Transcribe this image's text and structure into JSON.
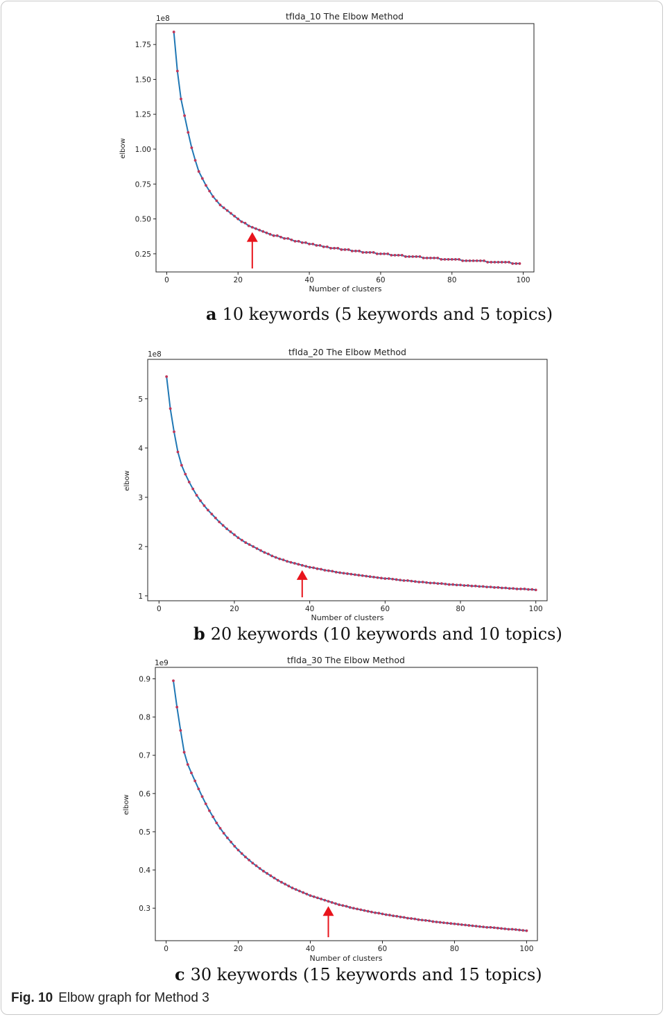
{
  "figure": {
    "number": "Fig. 10",
    "caption": "Elbow graph for Method 3"
  },
  "chart_data": [
    {
      "type": "line",
      "title": "tfIda_10 The Elbow Method",
      "xlabel": "Number of clusters",
      "ylabel": "elbow",
      "offset_label": "1e8",
      "scale": 100000000,
      "xlim": [
        -3,
        103
      ],
      "ylim": [
        0.12,
        1.9
      ],
      "xticks": [
        0,
        20,
        40,
        60,
        80,
        100
      ],
      "yticks": [
        0.25,
        0.5,
        0.75,
        1.0,
        1.25,
        1.5,
        1.75
      ],
      "ytick_labels": [
        "0.25",
        "0.50",
        "0.75",
        "1.00",
        "1.25",
        "1.50",
        "1.75"
      ],
      "line_color": "#1f77b4",
      "marker_color": "#c0365a",
      "arrow_color": "#e8141c",
      "arrow_x": 24,
      "caption_letter": "a",
      "caption": "10 keywords (5 keywords and 5 topics)",
      "series": [
        {
          "x": [
            2,
            3,
            4,
            5,
            6,
            7,
            8,
            9,
            10,
            11,
            12,
            13,
            14,
            15,
            16,
            17,
            18,
            19,
            20,
            21,
            22,
            23,
            24,
            25,
            26,
            27,
            28,
            29,
            30,
            31,
            32,
            33,
            34,
            35,
            36,
            37,
            38,
            39,
            40,
            41,
            42,
            43,
            44,
            45,
            46,
            47,
            48,
            49,
            50,
            51,
            52,
            53,
            54,
            55,
            56,
            57,
            58,
            59,
            60,
            61,
            62,
            63,
            64,
            65,
            66,
            67,
            68,
            69,
            70,
            71,
            72,
            73,
            74,
            75,
            76,
            77,
            78,
            79,
            80,
            81,
            82,
            83,
            84,
            85,
            86,
            87,
            88,
            89,
            90,
            91,
            92,
            93,
            94,
            95,
            96,
            97,
            98,
            99
          ],
          "y": [
            1.84,
            1.56,
            1.36,
            1.24,
            1.12,
            1.01,
            0.92,
            0.84,
            0.79,
            0.74,
            0.7,
            0.66,
            0.63,
            0.6,
            0.58,
            0.56,
            0.54,
            0.52,
            0.5,
            0.48,
            0.47,
            0.45,
            0.44,
            0.43,
            0.42,
            0.41,
            0.4,
            0.39,
            0.38,
            0.38,
            0.37,
            0.36,
            0.36,
            0.35,
            0.34,
            0.34,
            0.33,
            0.33,
            0.32,
            0.32,
            0.31,
            0.31,
            0.3,
            0.3,
            0.29,
            0.29,
            0.29,
            0.28,
            0.28,
            0.28,
            0.27,
            0.27,
            0.27,
            0.26,
            0.26,
            0.26,
            0.26,
            0.25,
            0.25,
            0.25,
            0.25,
            0.24,
            0.24,
            0.24,
            0.24,
            0.23,
            0.23,
            0.23,
            0.23,
            0.23,
            0.22,
            0.22,
            0.22,
            0.22,
            0.22,
            0.21,
            0.21,
            0.21,
            0.21,
            0.21,
            0.21,
            0.2,
            0.2,
            0.2,
            0.2,
            0.2,
            0.2,
            0.2,
            0.19,
            0.19,
            0.19,
            0.19,
            0.19,
            0.19,
            0.19,
            0.18,
            0.18,
            0.18
          ]
        }
      ]
    },
    {
      "type": "line",
      "title": "tfIda_20 The Elbow Method",
      "xlabel": "Number of clusters",
      "ylabel": "elbow",
      "offset_label": "1e8",
      "scale": 100000000,
      "xlim": [
        -3,
        103
      ],
      "ylim": [
        0.9,
        5.8
      ],
      "xticks": [
        0,
        20,
        40,
        60,
        80,
        100
      ],
      "yticks": [
        1,
        2,
        3,
        4,
        5
      ],
      "ytick_labels": [
        "1",
        "2",
        "3",
        "4",
        "5"
      ],
      "line_color": "#1f77b4",
      "marker_color": "#c0365a",
      "arrow_color": "#e8141c",
      "arrow_x": 38,
      "caption_letter": "b",
      "caption": "20 keywords (10 keywords and 10 topics)",
      "series": [
        {
          "x": [
            2,
            3,
            4,
            5,
            6,
            7,
            8,
            9,
            10,
            11,
            12,
            13,
            14,
            15,
            16,
            17,
            18,
            19,
            20,
            21,
            22,
            23,
            24,
            25,
            26,
            27,
            28,
            29,
            30,
            31,
            32,
            33,
            34,
            35,
            36,
            37,
            38,
            39,
            40,
            41,
            42,
            43,
            44,
            45,
            46,
            47,
            48,
            49,
            50,
            51,
            52,
            53,
            54,
            55,
            56,
            57,
            58,
            59,
            60,
            61,
            62,
            63,
            64,
            65,
            66,
            67,
            68,
            69,
            70,
            71,
            72,
            73,
            74,
            75,
            76,
            77,
            78,
            79,
            80,
            81,
            82,
            83,
            84,
            85,
            86,
            87,
            88,
            89,
            90,
            91,
            92,
            93,
            94,
            95,
            96,
            97,
            98,
            99,
            100
          ],
          "y": [
            5.45,
            4.8,
            4.33,
            3.92,
            3.65,
            3.47,
            3.31,
            3.17,
            3.04,
            2.93,
            2.83,
            2.74,
            2.66,
            2.58,
            2.5,
            2.43,
            2.36,
            2.3,
            2.24,
            2.18,
            2.13,
            2.08,
            2.04,
            2.0,
            1.96,
            1.92,
            1.88,
            1.85,
            1.81,
            1.78,
            1.75,
            1.73,
            1.7,
            1.68,
            1.66,
            1.64,
            1.62,
            1.6,
            1.58,
            1.57,
            1.55,
            1.54,
            1.52,
            1.51,
            1.5,
            1.48,
            1.47,
            1.46,
            1.45,
            1.44,
            1.43,
            1.42,
            1.41,
            1.4,
            1.39,
            1.38,
            1.37,
            1.36,
            1.35,
            1.35,
            1.34,
            1.33,
            1.32,
            1.31,
            1.31,
            1.3,
            1.29,
            1.28,
            1.28,
            1.27,
            1.26,
            1.26,
            1.25,
            1.25,
            1.24,
            1.23,
            1.23,
            1.22,
            1.22,
            1.21,
            1.21,
            1.2,
            1.2,
            1.19,
            1.19,
            1.18,
            1.18,
            1.17,
            1.17,
            1.16,
            1.16,
            1.15,
            1.15,
            1.14,
            1.14,
            1.14,
            1.13,
            1.13,
            1.12
          ]
        }
      ]
    },
    {
      "type": "line",
      "title": "tfIda_30 The Elbow Method",
      "xlabel": "Number of clusters",
      "ylabel": "elbow",
      "offset_label": "1e9",
      "scale": 1000000000,
      "xlim": [
        -3,
        103
      ],
      "ylim": [
        0.215,
        0.93
      ],
      "xticks": [
        0,
        20,
        40,
        60,
        80,
        100
      ],
      "yticks": [
        0.3,
        0.4,
        0.5,
        0.6,
        0.7,
        0.8,
        0.9
      ],
      "ytick_labels": [
        "0.3",
        "0.4",
        "0.5",
        "0.6",
        "0.7",
        "0.8",
        "0.9"
      ],
      "line_color": "#1f77b4",
      "marker_color": "#c0365a",
      "arrow_color": "#e8141c",
      "arrow_x": 45,
      "caption_letter": "c",
      "caption": "30 keywords (15 keywords and 15 topics)",
      "series": [
        {
          "x": [
            2,
            3,
            4,
            5,
            6,
            7,
            8,
            9,
            10,
            11,
            12,
            13,
            14,
            15,
            16,
            17,
            18,
            19,
            20,
            21,
            22,
            23,
            24,
            25,
            26,
            27,
            28,
            29,
            30,
            31,
            32,
            33,
            34,
            35,
            36,
            37,
            38,
            39,
            40,
            41,
            42,
            43,
            44,
            45,
            46,
            47,
            48,
            49,
            50,
            51,
            52,
            53,
            54,
            55,
            56,
            57,
            58,
            59,
            60,
            61,
            62,
            63,
            64,
            65,
            66,
            67,
            68,
            69,
            70,
            71,
            72,
            73,
            74,
            75,
            76,
            77,
            78,
            79,
            80,
            81,
            82,
            83,
            84,
            85,
            86,
            87,
            88,
            89,
            90,
            91,
            92,
            93,
            94,
            95,
            96,
            97,
            98,
            99,
            100
          ],
          "y": [
            0.895,
            0.826,
            0.765,
            0.708,
            0.676,
            0.654,
            0.633,
            0.612,
            0.592,
            0.573,
            0.555,
            0.539,
            0.523,
            0.509,
            0.496,
            0.484,
            0.473,
            0.462,
            0.452,
            0.443,
            0.434,
            0.426,
            0.418,
            0.411,
            0.404,
            0.397,
            0.391,
            0.385,
            0.379,
            0.373,
            0.368,
            0.363,
            0.358,
            0.353,
            0.349,
            0.345,
            0.341,
            0.337,
            0.333,
            0.33,
            0.327,
            0.324,
            0.321,
            0.318,
            0.315,
            0.312,
            0.309,
            0.307,
            0.305,
            0.302,
            0.3,
            0.298,
            0.296,
            0.294,
            0.292,
            0.29,
            0.288,
            0.287,
            0.285,
            0.283,
            0.282,
            0.28,
            0.279,
            0.277,
            0.276,
            0.274,
            0.273,
            0.272,
            0.27,
            0.269,
            0.268,
            0.267,
            0.265,
            0.264,
            0.263,
            0.262,
            0.261,
            0.26,
            0.259,
            0.258,
            0.257,
            0.256,
            0.255,
            0.254,
            0.253,
            0.252,
            0.251,
            0.25,
            0.25,
            0.249,
            0.248,
            0.247,
            0.246,
            0.245,
            0.245,
            0.244,
            0.243,
            0.242,
            0.241
          ]
        }
      ]
    }
  ]
}
